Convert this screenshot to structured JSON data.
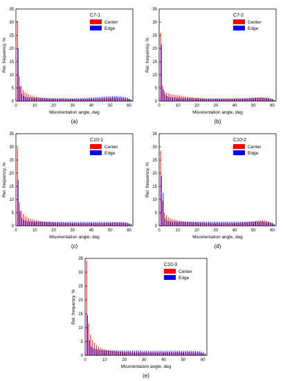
{
  "colors": {
    "center": "#ff0000",
    "edge": "#0000ff",
    "axis": "#000000"
  },
  "chart_data": [
    {
      "type": "bar",
      "panel_label": "(a)",
      "title": "C7-1",
      "xlabel": "Misorientation angle, deg",
      "ylabel": "Rel. frequency, %",
      "xlim": [
        0,
        62
      ],
      "ylim": [
        0,
        35
      ],
      "xticks": [
        0,
        10,
        20,
        30,
        40,
        50,
        60
      ],
      "yticks": [
        0,
        5,
        10,
        15,
        20,
        25,
        30,
        35
      ],
      "legend": "top-right",
      "x": [
        1,
        2,
        3,
        4,
        5,
        6,
        7,
        8,
        9,
        10,
        11,
        12,
        13,
        14,
        15,
        16,
        17,
        18,
        19,
        20,
        21,
        22,
        23,
        24,
        25,
        26,
        27,
        28,
        29,
        30,
        31,
        32,
        33,
        34,
        35,
        36,
        37,
        38,
        39,
        40,
        41,
        42,
        43,
        44,
        45,
        46,
        47,
        48,
        49,
        50,
        51,
        52,
        53,
        54,
        55,
        56,
        57,
        58,
        59,
        60,
        61
      ],
      "series": [
        {
          "name": "Center",
          "values": [
            30.5,
            9.5,
            5.8,
            4.2,
            3.3,
            2.8,
            2.5,
            2.2,
            2.0,
            1.8,
            1.6,
            1.5,
            1.4,
            1.3,
            1.2,
            1.1,
            1.1,
            1.0,
            1.0,
            1.0,
            0.9,
            0.9,
            0.9,
            0.9,
            0.9,
            0.8,
            0.8,
            0.8,
            0.8,
            0.8,
            0.8,
            0.8,
            0.8,
            0.8,
            0.8,
            0.8,
            0.8,
            0.8,
            0.9,
            0.9,
            0.9,
            0.9,
            1.0,
            1.0,
            1.0,
            1.1,
            1.1,
            1.2,
            1.2,
            1.3,
            1.3,
            1.3,
            1.3,
            1.3,
            1.2,
            1.2,
            1.1,
            1.0,
            0.9,
            0.7,
            0.4
          ]
        },
        {
          "name": "Edge",
          "values": [
            20.0,
            5.5,
            2.8,
            2.0,
            1.6,
            1.5,
            1.4,
            1.4,
            1.3,
            1.3,
            1.3,
            1.2,
            1.2,
            1.2,
            1.2,
            1.2,
            1.1,
            1.1,
            1.1,
            1.1,
            1.1,
            1.1,
            1.1,
            1.1,
            1.1,
            1.1,
            1.1,
            1.1,
            1.1,
            1.1,
            1.1,
            1.2,
            1.2,
            1.2,
            1.2,
            1.2,
            1.3,
            1.3,
            1.3,
            1.4,
            1.4,
            1.5,
            1.5,
            1.6,
            1.6,
            1.7,
            1.7,
            1.8,
            1.8,
            1.8,
            1.9,
            1.9,
            1.9,
            1.8,
            1.8,
            1.7,
            1.6,
            1.5,
            1.3,
            1.0,
            0.6
          ]
        }
      ]
    },
    {
      "type": "bar",
      "panel_label": "(b)",
      "title": "C7-2",
      "xlabel": "Misorientation angle, deg",
      "ylabel": "Rel. frequency, %",
      "xlim": [
        0,
        62
      ],
      "ylim": [
        0,
        35
      ],
      "xticks": [
        0,
        10,
        20,
        30,
        40,
        50,
        60
      ],
      "yticks": [
        0,
        5,
        10,
        15,
        20,
        25,
        30,
        35
      ],
      "legend": "top-right",
      "x": [
        1,
        2,
        3,
        4,
        5,
        6,
        7,
        8,
        9,
        10,
        11,
        12,
        13,
        14,
        15,
        16,
        17,
        18,
        19,
        20,
        21,
        22,
        23,
        24,
        25,
        26,
        27,
        28,
        29,
        30,
        31,
        32,
        33,
        34,
        35,
        36,
        37,
        38,
        39,
        40,
        41,
        42,
        43,
        44,
        45,
        46,
        47,
        48,
        49,
        50,
        51,
        52,
        53,
        54,
        55,
        56,
        57,
        58,
        59,
        60,
        61
      ],
      "series": [
        {
          "name": "Center",
          "values": [
            26.0,
            6.0,
            3.8,
            3.2,
            2.9,
            2.7,
            2.5,
            2.4,
            2.3,
            2.2,
            2.1,
            2.0,
            1.9,
            1.8,
            1.7,
            1.6,
            1.5,
            1.4,
            1.3,
            1.3,
            1.2,
            1.1,
            1.1,
            1.0,
            1.0,
            1.0,
            0.9,
            0.9,
            0.9,
            0.9,
            0.9,
            0.9,
            0.9,
            0.9,
            0.9,
            0.9,
            0.9,
            0.9,
            0.9,
            0.9,
            1.0,
            1.0,
            1.0,
            1.0,
            1.1,
            1.1,
            1.1,
            1.2,
            1.2,
            1.3,
            1.3,
            1.4,
            1.4,
            1.4,
            1.4,
            1.3,
            1.3,
            1.2,
            1.0,
            0.8,
            0.4
          ]
        },
        {
          "name": "Edge",
          "values": [
            21.5,
            4.5,
            2.5,
            1.9,
            1.6,
            1.5,
            1.4,
            1.4,
            1.3,
            1.3,
            1.3,
            1.2,
            1.2,
            1.2,
            1.2,
            1.1,
            1.1,
            1.1,
            1.1,
            1.1,
            1.1,
            1.0,
            1.0,
            1.0,
            1.0,
            1.0,
            1.0,
            1.0,
            1.0,
            1.0,
            1.0,
            1.0,
            1.0,
            1.0,
            1.0,
            1.0,
            1.0,
            1.0,
            1.0,
            1.0,
            1.0,
            1.0,
            1.0,
            1.1,
            1.1,
            1.1,
            1.1,
            1.2,
            1.2,
            1.2,
            1.3,
            1.3,
            1.3,
            1.3,
            1.3,
            1.2,
            1.2,
            1.1,
            1.0,
            0.8,
            0.4
          ]
        }
      ]
    },
    {
      "type": "bar",
      "panel_label": "(c)",
      "title": "C10-1",
      "xlabel": "Misorientation angle, deg",
      "ylabel": "Rel. frequency, %",
      "xlim": [
        0,
        62
      ],
      "ylim": [
        0,
        35
      ],
      "xticks": [
        0,
        10,
        20,
        30,
        40,
        50,
        60
      ],
      "yticks": [
        0,
        5,
        10,
        15,
        20,
        25,
        30,
        35
      ],
      "legend": "top-right",
      "x": [
        1,
        2,
        3,
        4,
        5,
        6,
        7,
        8,
        9,
        10,
        11,
        12,
        13,
        14,
        15,
        16,
        17,
        18,
        19,
        20,
        21,
        22,
        23,
        24,
        25,
        26,
        27,
        28,
        29,
        30,
        31,
        32,
        33,
        34,
        35,
        36,
        37,
        38,
        39,
        40,
        41,
        42,
        43,
        44,
        45,
        46,
        47,
        48,
        49,
        50,
        51,
        52,
        53,
        54,
        55,
        56,
        57,
        58,
        59,
        60,
        61
      ],
      "series": [
        {
          "name": "Center",
          "values": [
            29.5,
            9.0,
            5.8,
            4.5,
            3.8,
            3.3,
            2.9,
            2.6,
            2.4,
            2.2,
            2.0,
            1.9,
            1.8,
            1.7,
            1.6,
            1.5,
            1.4,
            1.4,
            1.3,
            1.3,
            1.2,
            1.2,
            1.2,
            1.1,
            1.1,
            1.1,
            1.1,
            1.1,
            1.0,
            1.0,
            1.0,
            1.0,
            1.0,
            1.0,
            1.0,
            1.0,
            1.0,
            1.0,
            1.0,
            1.0,
            1.0,
            1.0,
            1.0,
            1.0,
            1.0,
            1.0,
            1.0,
            1.1,
            1.1,
            1.1,
            1.1,
            1.2,
            1.2,
            1.2,
            1.2,
            1.2,
            1.2,
            1.1,
            1.0,
            0.8,
            0.4
          ]
        },
        {
          "name": "Edge",
          "values": [
            17.5,
            5.5,
            3.0,
            2.3,
            2.0,
            1.8,
            1.7,
            1.7,
            1.6,
            1.6,
            1.6,
            1.6,
            1.6,
            1.6,
            1.6,
            1.6,
            1.6,
            1.6,
            1.5,
            1.5,
            1.5,
            1.5,
            1.5,
            1.5,
            1.5,
            1.5,
            1.5,
            1.5,
            1.5,
            1.5,
            1.5,
            1.5,
            1.5,
            1.5,
            1.5,
            1.5,
            1.5,
            1.5,
            1.5,
            1.5,
            1.5,
            1.5,
            1.5,
            1.5,
            1.5,
            1.5,
            1.5,
            1.5,
            1.5,
            1.5,
            1.5,
            1.5,
            1.4,
            1.4,
            1.4,
            1.4,
            1.3,
            1.3,
            1.2,
            1.0,
            0.6
          ]
        }
      ]
    },
    {
      "type": "bar",
      "panel_label": "(d)",
      "title": "C10-2",
      "xlabel": "Misorientation angle, deg",
      "ylabel": "Rel. frequency, %",
      "xlim": [
        0,
        62
      ],
      "ylim": [
        0,
        35
      ],
      "xticks": [
        0,
        10,
        20,
        30,
        40,
        50,
        60
      ],
      "yticks": [
        0,
        5,
        10,
        15,
        20,
        25,
        30,
        35
      ],
      "legend": "top-right",
      "x": [
        1,
        2,
        3,
        4,
        5,
        6,
        7,
        8,
        9,
        10,
        11,
        12,
        13,
        14,
        15,
        16,
        17,
        18,
        19,
        20,
        21,
        22,
        23,
        24,
        25,
        26,
        27,
        28,
        29,
        30,
        31,
        32,
        33,
        34,
        35,
        36,
        37,
        38,
        39,
        40,
        41,
        42,
        43,
        44,
        45,
        46,
        47,
        48,
        49,
        50,
        51,
        52,
        53,
        54,
        55,
        56,
        57,
        58,
        59,
        60,
        61
      ],
      "series": [
        {
          "name": "Center",
          "values": [
            28.5,
            9.5,
            5.0,
            4.0,
            3.3,
            2.9,
            2.6,
            2.4,
            2.2,
            2.0,
            1.9,
            1.8,
            1.7,
            1.6,
            1.5,
            1.5,
            1.4,
            1.4,
            1.3,
            1.3,
            1.2,
            1.2,
            1.2,
            1.1,
            1.1,
            1.1,
            1.1,
            1.0,
            1.0,
            1.0,
            1.0,
            1.0,
            1.0,
            1.0,
            1.0,
            1.0,
            1.0,
            1.0,
            1.0,
            1.0,
            1.1,
            1.1,
            1.1,
            1.2,
            1.2,
            1.3,
            1.4,
            1.5,
            1.6,
            1.7,
            1.8,
            1.9,
            2.0,
            2.1,
            2.1,
            2.0,
            1.9,
            1.7,
            1.4,
            1.0,
            0.5
          ]
        },
        {
          "name": "Edge",
          "values": [
            19.0,
            12.5,
            2.8,
            2.0,
            1.8,
            1.7,
            1.6,
            1.6,
            1.6,
            1.6,
            1.6,
            1.6,
            1.6,
            1.6,
            1.6,
            1.6,
            1.6,
            1.6,
            1.6,
            1.6,
            1.6,
            1.6,
            1.6,
            1.6,
            1.6,
            1.6,
            1.6,
            1.6,
            1.6,
            1.6,
            1.6,
            1.6,
            1.6,
            1.6,
            1.6,
            1.6,
            1.6,
            1.6,
            1.6,
            1.6,
            1.6,
            1.6,
            1.6,
            1.6,
            1.6,
            1.6,
            1.6,
            1.6,
            1.6,
            1.6,
            1.6,
            1.6,
            1.6,
            1.6,
            1.6,
            1.5,
            1.5,
            1.4,
            1.3,
            1.1,
            0.6
          ]
        }
      ]
    },
    {
      "type": "bar",
      "panel_label": "(e)",
      "title": "C10-3",
      "xlabel": "Misorientation angle, deg",
      "ylabel": "Rel. frequency, %",
      "xlim": [
        0,
        62
      ],
      "ylim": [
        0,
        35
      ],
      "xticks": [
        0,
        10,
        20,
        30,
        40,
        50,
        60
      ],
      "yticks": [
        0,
        5,
        10,
        15,
        20,
        25,
        30,
        35
      ],
      "legend": "top-right",
      "x": [
        1,
        2,
        3,
        4,
        5,
        6,
        7,
        8,
        9,
        10,
        11,
        12,
        13,
        14,
        15,
        16,
        17,
        18,
        19,
        20,
        21,
        22,
        23,
        24,
        25,
        26,
        27,
        28,
        29,
        30,
        31,
        32,
        33,
        34,
        35,
        36,
        37,
        38,
        39,
        40,
        41,
        42,
        43,
        44,
        45,
        46,
        47,
        48,
        49,
        50,
        51,
        52,
        53,
        54,
        55,
        56,
        57,
        58,
        59,
        60,
        61
      ],
      "series": [
        {
          "name": "Center",
          "values": [
            34.0,
            11.5,
            7.5,
            5.5,
            4.5,
            3.7,
            3.1,
            2.7,
            2.4,
            2.2,
            2.0,
            1.8,
            1.7,
            1.6,
            1.5,
            1.4,
            1.4,
            1.3,
            1.3,
            1.2,
            1.2,
            1.2,
            1.2,
            1.1,
            1.1,
            1.1,
            1.1,
            1.1,
            1.1,
            1.1,
            1.1,
            1.1,
            1.1,
            1.1,
            1.1,
            1.1,
            1.1,
            1.1,
            1.1,
            1.1,
            1.1,
            1.1,
            1.1,
            1.1,
            1.1,
            1.1,
            1.1,
            1.1,
            1.1,
            1.1,
            1.1,
            1.1,
            1.1,
            1.1,
            1.1,
            1.0,
            1.0,
            1.0,
            0.9,
            0.7,
            0.4
          ]
        },
        {
          "name": "Edge",
          "values": [
            14.5,
            5.5,
            3.2,
            2.6,
            2.3,
            2.1,
            2.0,
            1.9,
            1.9,
            1.8,
            1.8,
            1.8,
            1.8,
            1.8,
            1.8,
            1.7,
            1.7,
            1.7,
            1.7,
            1.7,
            1.7,
            1.7,
            1.7,
            1.7,
            1.7,
            1.7,
            1.7,
            1.7,
            1.6,
            1.6,
            1.6,
            1.6,
            1.6,
            1.6,
            1.6,
            1.6,
            1.6,
            1.6,
            1.6,
            1.6,
            1.6,
            1.6,
            1.6,
            1.6,
            1.6,
            1.6,
            1.6,
            1.6,
            1.6,
            1.6,
            1.6,
            1.6,
            1.6,
            1.6,
            1.6,
            1.6,
            1.5,
            1.5,
            1.4,
            1.1,
            0.6
          ]
        }
      ]
    }
  ]
}
